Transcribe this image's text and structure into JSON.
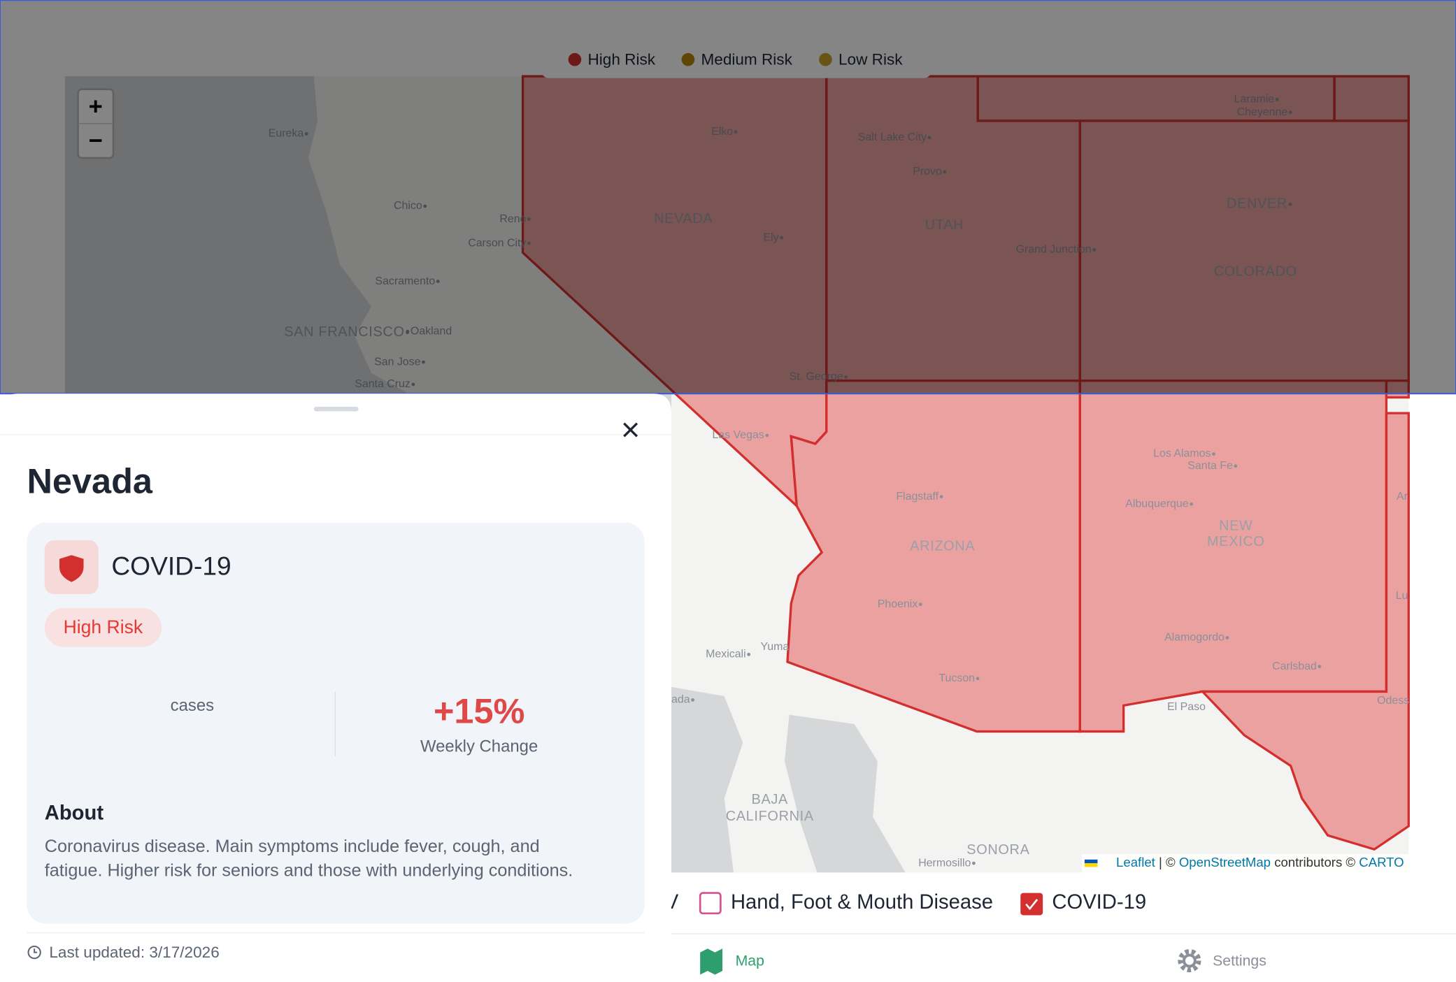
{
  "legend": [
    "High Risk",
    "Medium Risk",
    "Low Risk"
  ],
  "zoom": {
    "in": "+",
    "out": "−"
  },
  "cities": [
    "Eureka",
    "Chico",
    "Reno",
    "Carson City",
    "Sacramento",
    "SAN FRANCISCO",
    "Oakland",
    "San Jose",
    "Santa Cruz",
    "Elko",
    "Salt Lake City",
    "Provo",
    "Ely",
    "Laramie",
    "Cheyenne",
    "DENVER",
    "Grand Junction",
    "St. George",
    "Las Vegas",
    "Los Alamos",
    "Santa Fe",
    "Flagstaff",
    "Albuquerque",
    "Phoenix",
    "Alamogordo",
    "Mexicali",
    "Yuma",
    "Carlsbad",
    "Tucson",
    "El Paso",
    "Hermosillo",
    "Odess",
    "ada",
    "Ar",
    "Lu"
  ],
  "regions": [
    "NEVADA",
    "UTAH",
    "COLORADO",
    "ARIZONA",
    "NEW",
    "MEXICO",
    "BAJA",
    "CALIFORNIA",
    "SONORA"
  ],
  "attribution": {
    "leaflet": "Leaflet",
    "sep": "| ©",
    "osm": "OpenStreetMap",
    "contrib": "contributors ©",
    "carto": "CARTO"
  },
  "panel": {
    "title": "Nevada",
    "disease": "COVID-19",
    "risk": "High Risk",
    "stat_label": "cases",
    "change": "+15%",
    "change_label": "Weekly Change",
    "about_heading": "About",
    "about_lines": [
      "Coronavirus disease. Main symptoms include fever, cough, and",
      "fatigue. Higher risk for seniors and those with underlying conditions."
    ],
    "updated": "Last updated: 3/17/2026"
  },
  "filters": [
    "V",
    "Hand, Foot & Mouth Disease",
    "COVID-19"
  ],
  "nav": [
    "Map",
    "Settings"
  ]
}
